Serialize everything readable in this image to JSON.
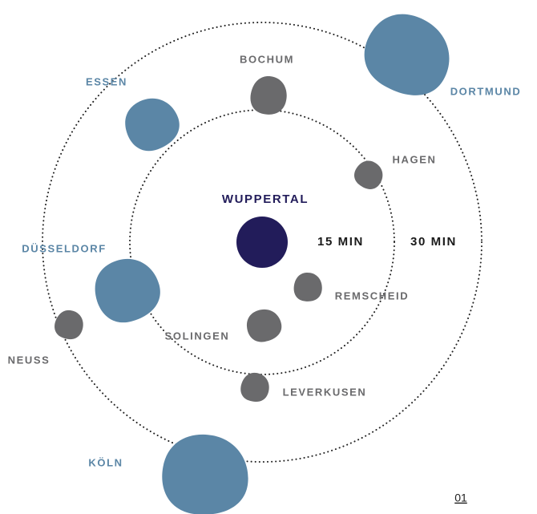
{
  "center": {
    "label": "WUPPERTAL"
  },
  "rings": [
    "15 MIN",
    "30 MIN"
  ],
  "cities": [
    {
      "label": "BOCHUM"
    },
    {
      "label": "ESSEN"
    },
    {
      "label": "DORTMUND"
    },
    {
      "label": "HAGEN"
    },
    {
      "label": "REMSCHEID"
    },
    {
      "label": "SOLINGEN"
    },
    {
      "label": "LEVERKUSEN"
    },
    {
      "label": "DÜSSELDORF"
    },
    {
      "label": "NEUSS"
    },
    {
      "label": "KÖLN"
    }
  ],
  "page_number": "01"
}
